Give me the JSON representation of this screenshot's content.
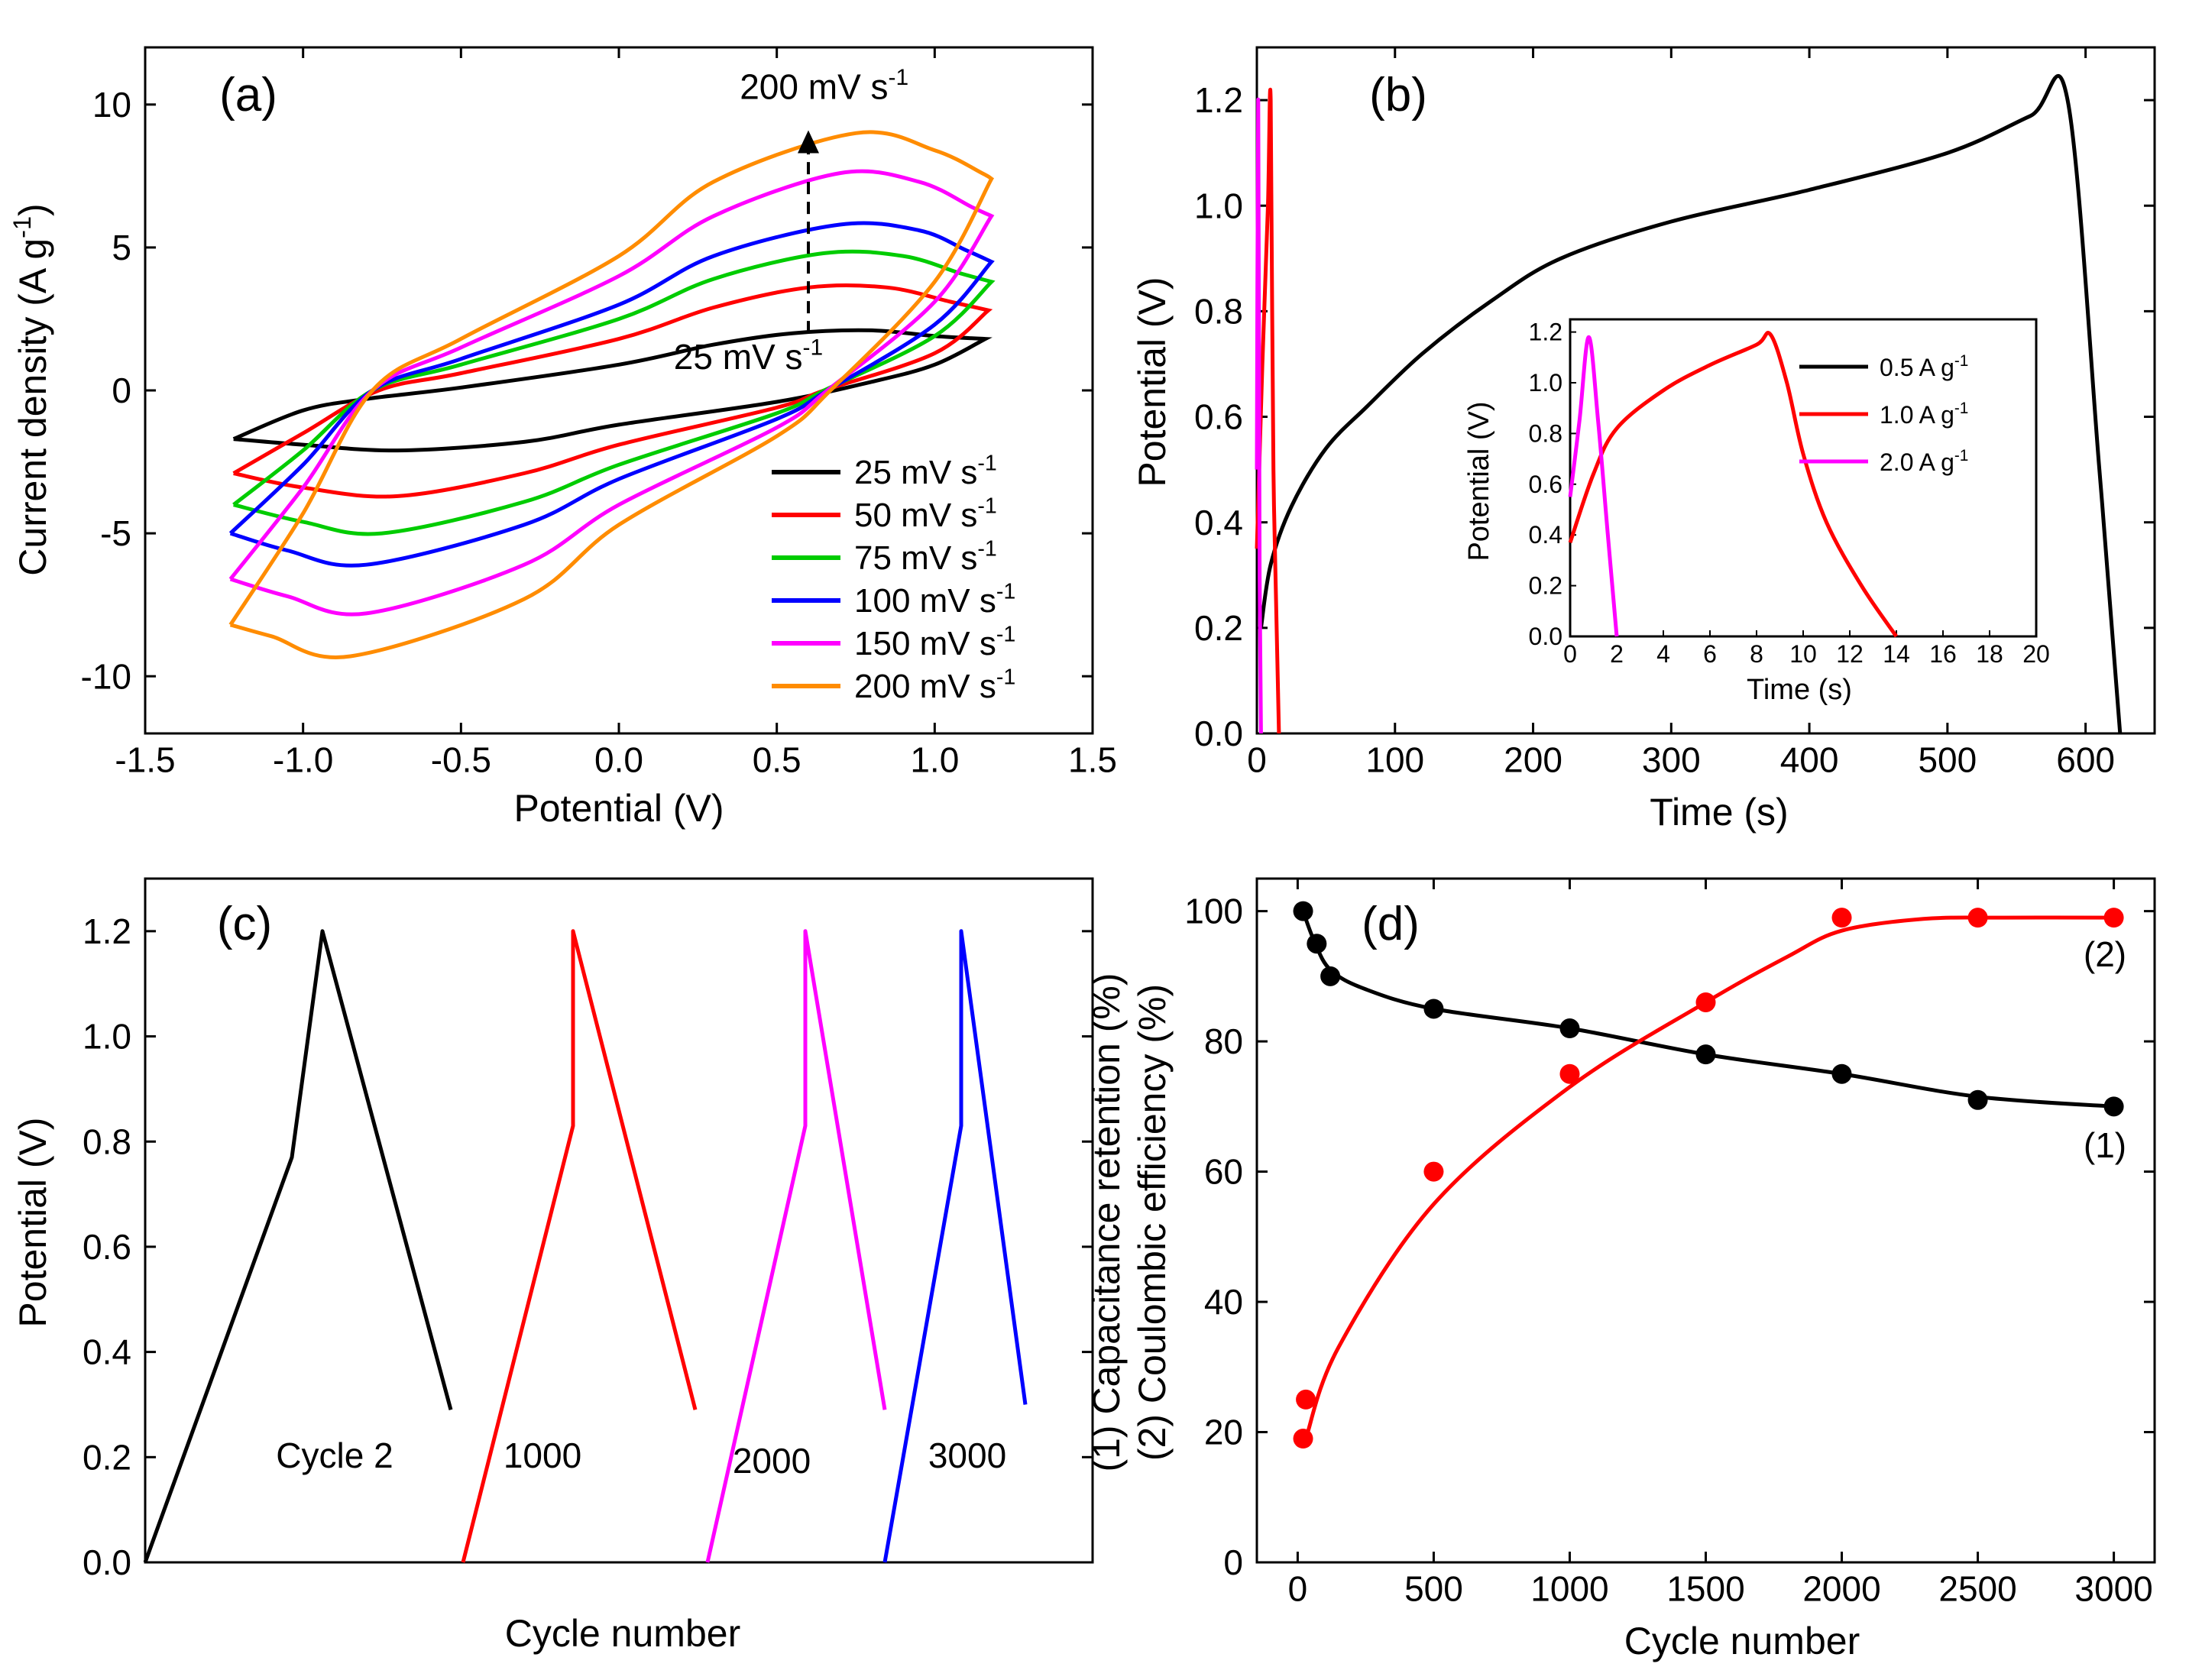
{
  "chart_data": [
    {
      "panel": "(a)",
      "type": "line",
      "xlabel": "Potential (V)",
      "ylabel": "Current density (A g⁻¹)",
      "xlim": [
        -1.5,
        1.5
      ],
      "ylim": [
        -12,
        12
      ],
      "xticks": [
        -1.5,
        -1.0,
        -0.5,
        0.0,
        0.5,
        1.0,
        1.5
      ],
      "xtick_labels": [
        "-1.5",
        "-1.0",
        "-0.5",
        "0.0",
        "0.5",
        "1.0",
        "1.5"
      ],
      "yticks": [
        -10,
        -5,
        0,
        5,
        10
      ],
      "ytick_labels": [
        "-10",
        "-5",
        "0",
        "5",
        "10"
      ],
      "legend_position": "bottom-right",
      "annotations": [
        {
          "text": "200 mV s⁻¹",
          "x": 0.65,
          "y": 10.2
        },
        {
          "text": "25 mV s⁻¹",
          "x": 0.41,
          "y": 0.75
        }
      ],
      "series": [
        {
          "name": "25 mV s⁻¹",
          "color": "#000000",
          "upper": [
            [
              -1.22,
              -1.7
            ],
            [
              -1.0,
              -0.7
            ],
            [
              -0.8,
              -0.3
            ],
            [
              -0.5,
              0.1
            ],
            [
              0,
              0.9
            ],
            [
              0.3,
              1.6
            ],
            [
              0.55,
              2.0
            ],
            [
              0.8,
              2.1
            ],
            [
              1.0,
              1.9
            ],
            [
              1.16,
              1.8
            ]
          ],
          "lower": [
            [
              1.16,
              1.8
            ],
            [
              1.0,
              0.9
            ],
            [
              0.8,
              0.3
            ],
            [
              0.5,
              -0.4
            ],
            [
              0,
              -1.2
            ],
            [
              -0.3,
              -1.8
            ],
            [
              -0.7,
              -2.1
            ],
            [
              -1.0,
              -1.9
            ],
            [
              -1.22,
              -1.7
            ]
          ]
        },
        {
          "name": "50 mV s⁻¹",
          "color": "#ff0000",
          "upper": [
            [
              -1.22,
              -2.9
            ],
            [
              -1.0,
              -1.5
            ],
            [
              -0.76,
              0.0
            ],
            [
              -0.5,
              0.6
            ],
            [
              0,
              1.8
            ],
            [
              0.3,
              2.9
            ],
            [
              0.6,
              3.6
            ],
            [
              0.85,
              3.6
            ],
            [
              1.05,
              3.1
            ],
            [
              1.17,
              2.8
            ]
          ],
          "lower": [
            [
              1.17,
              2.8
            ],
            [
              1.0,
              1.3
            ],
            [
              0.65,
              0.0
            ],
            [
              0.5,
              -0.6
            ],
            [
              0,
              -1.9
            ],
            [
              -0.3,
              -2.9
            ],
            [
              -0.7,
              -3.7
            ],
            [
              -1.0,
              -3.4
            ],
            [
              -1.22,
              -2.9
            ]
          ]
        },
        {
          "name": "75 mV s⁻¹",
          "color": "#00cc00",
          "upper": [
            [
              -1.22,
              -4.0
            ],
            [
              -1.0,
              -2.1
            ],
            [
              -0.78,
              0.0
            ],
            [
              -0.5,
              0.9
            ],
            [
              0,
              2.5
            ],
            [
              0.3,
              3.9
            ],
            [
              0.65,
              4.8
            ],
            [
              0.9,
              4.7
            ],
            [
              1.08,
              4.1
            ],
            [
              1.18,
              3.8
            ]
          ],
          "lower": [
            [
              1.18,
              3.8
            ],
            [
              1.0,
              1.9
            ],
            [
              0.65,
              0.0
            ],
            [
              0.5,
              -0.8
            ],
            [
              0,
              -2.6
            ],
            [
              -0.3,
              -3.9
            ],
            [
              -0.75,
              -5.0
            ],
            [
              -1.0,
              -4.6
            ],
            [
              -1.22,
              -4.0
            ]
          ]
        },
        {
          "name": "100 mV s⁻¹",
          "color": "#0000ff",
          "upper": [
            [
              -1.23,
              -5.0
            ],
            [
              -1.0,
              -2.6
            ],
            [
              -0.78,
              0.0
            ],
            [
              -0.5,
              1.1
            ],
            [
              0,
              3.0
            ],
            [
              0.3,
              4.7
            ],
            [
              0.7,
              5.8
            ],
            [
              0.95,
              5.6
            ],
            [
              1.1,
              4.9
            ],
            [
              1.18,
              4.5
            ]
          ],
          "lower": [
            [
              1.18,
              4.5
            ],
            [
              1.0,
              2.3
            ],
            [
              0.66,
              0.0
            ],
            [
              0.5,
              -1.0
            ],
            [
              0,
              -3.1
            ],
            [
              -0.3,
              -4.7
            ],
            [
              -0.8,
              -6.1
            ],
            [
              -1.05,
              -5.6
            ],
            [
              -1.23,
              -5.0
            ]
          ]
        },
        {
          "name": "150 mV s⁻¹",
          "color": "#ff00ff",
          "upper": [
            [
              -1.23,
              -6.6
            ],
            [
              -1.0,
              -3.4
            ],
            [
              -0.78,
              0.0
            ],
            [
              -0.5,
              1.5
            ],
            [
              0,
              4.0
            ],
            [
              0.3,
              6.1
            ],
            [
              0.7,
              7.6
            ],
            [
              0.95,
              7.3
            ],
            [
              1.12,
              6.4
            ],
            [
              1.18,
              6.1
            ]
          ],
          "lower": [
            [
              1.18,
              6.1
            ],
            [
              1.0,
              3.1
            ],
            [
              0.66,
              0.0
            ],
            [
              0.5,
              -1.3
            ],
            [
              0,
              -4.0
            ],
            [
              -0.3,
              -6.1
            ],
            [
              -0.8,
              -7.8
            ],
            [
              -1.05,
              -7.2
            ],
            [
              -1.23,
              -6.6
            ]
          ]
        },
        {
          "name": "200 mV s⁻¹",
          "color": "#ff8c00",
          "upper": [
            [
              -1.23,
              -8.2
            ],
            [
              -1.0,
              -4.3
            ],
            [
              -0.78,
              0.0
            ],
            [
              -0.5,
              1.8
            ],
            [
              0,
              4.7
            ],
            [
              0.3,
              7.3
            ],
            [
              0.75,
              9.0
            ],
            [
              1.0,
              8.4
            ],
            [
              1.15,
              7.6
            ],
            [
              1.18,
              7.4
            ]
          ],
          "lower": [
            [
              1.18,
              7.4
            ],
            [
              1.0,
              3.8
            ],
            [
              0.67,
              0.0
            ],
            [
              0.5,
              -1.6
            ],
            [
              0,
              -4.7
            ],
            [
              -0.3,
              -7.3
            ],
            [
              -0.85,
              -9.3
            ],
            [
              -1.1,
              -8.6
            ],
            [
              -1.23,
              -8.2
            ]
          ]
        }
      ]
    },
    {
      "panel": "(b)",
      "type": "line",
      "xlabel": "Time (s)",
      "ylabel": "Potential (V)",
      "xlim": [
        0,
        650
      ],
      "ylim": [
        0,
        1.3
      ],
      "xticks": [
        0,
        100,
        200,
        300,
        400,
        500,
        600
      ],
      "xtick_labels": [
        "0",
        "100",
        "200",
        "300",
        "400",
        "500",
        "600"
      ],
      "yticks": [
        0,
        0.2,
        0.4,
        0.6,
        0.8,
        1.0,
        1.2
      ],
      "ytick_labels": [
        "0.0",
        "0.2",
        "0.4",
        "0.6",
        "0.8",
        "1.0",
        "1.2"
      ],
      "series": [
        {
          "name": "0.5 A g⁻¹",
          "color": "#000000",
          "points": [
            [
              3,
              0.2
            ],
            [
              10,
              0.32
            ],
            [
              25,
              0.43
            ],
            [
              50,
              0.54
            ],
            [
              80,
              0.62
            ],
            [
              120,
              0.72
            ],
            [
              170,
              0.82
            ],
            [
              220,
              0.9
            ],
            [
              300,
              0.97
            ],
            [
              400,
              1.03
            ],
            [
              500,
              1.1
            ],
            [
              560,
              1.17
            ],
            [
              587,
              1.2
            ],
            [
              610,
              0.5
            ],
            [
              625,
              0.0
            ]
          ]
        },
        {
          "name": "1.0 A g⁻¹",
          "color": "#ff0000",
          "points": [
            [
              0,
              0.35
            ],
            [
              4,
              0.7
            ],
            [
              8,
              1.0
            ],
            [
              10,
              1.2
            ],
            [
              12,
              0.5
            ],
            [
              16,
              0.0
            ]
          ]
        },
        {
          "name": "2.0 A g⁻¹",
          "color": "#ff00ff",
          "points": [
            [
              0,
              0.5
            ],
            [
              1,
              1.2
            ],
            [
              2,
              0.3
            ],
            [
              3,
              0.0
            ]
          ]
        }
      ],
      "inset": {
        "xlabel": "Time (s)",
        "ylabel": "Potential (V)",
        "xlim": [
          0,
          20
        ],
        "ylim": [
          0,
          1.25
        ],
        "xticks": [
          0,
          2,
          4,
          6,
          8,
          10,
          12,
          14,
          16,
          18,
          20
        ],
        "xtick_labels": [
          "0",
          "2",
          "4",
          "6",
          "8",
          "10",
          "12",
          "14",
          "16",
          "18",
          "20"
        ],
        "yticks": [
          0,
          0.2,
          0.4,
          0.6,
          0.8,
          1.0,
          1.2
        ],
        "ytick_labels": [
          "0.0",
          "0.2",
          "0.4",
          "0.6",
          "0.8",
          "1.0",
          "1.2"
        ],
        "legend_position": "top-right",
        "series": [
          {
            "name": "0.5 A g⁻¹",
            "color": "#000000",
            "points": []
          },
          {
            "name": "1.0 A g⁻¹",
            "color": "#ff0000",
            "points": [
              [
                0,
                0.37
              ],
              [
                1,
                0.64
              ],
              [
                2,
                0.82
              ],
              [
                4,
                0.97
              ],
              [
                6,
                1.07
              ],
              [
                8,
                1.15
              ],
              [
                8.6,
                1.19
              ],
              [
                9.3,
                1.0
              ],
              [
                10,
                0.72
              ],
              [
                11,
                0.45
              ],
              [
                12.5,
                0.2
              ],
              [
                14,
                0.0
              ]
            ]
          },
          {
            "name": "2.0 A g⁻¹",
            "color": "#ff00ff",
            "points": [
              [
                0,
                0.55
              ],
              [
                0.4,
                0.85
              ],
              [
                0.8,
                1.18
              ],
              [
                1.2,
                0.85
              ],
              [
                1.6,
                0.42
              ],
              [
                2.0,
                0.0
              ]
            ]
          }
        ]
      }
    },
    {
      "panel": "(c)",
      "type": "line",
      "xlabel": "Cycle number",
      "ylabel": "Potential (V)",
      "ylim": [
        0,
        1.3
      ],
      "yticks": [
        0,
        0.2,
        0.4,
        0.6,
        0.8,
        1.0,
        1.2
      ],
      "ytick_labels": [
        "0.0",
        "0.2",
        "0.4",
        "0.6",
        "0.8",
        "1.0",
        "1.2"
      ],
      "series": [
        {
          "name": "Cycle 2",
          "color": "#000000",
          "label": "Cycle 2",
          "points": [
            [
              0,
              0
            ],
            [
              0.48,
              0.77
            ],
            [
              0.58,
              1.2
            ],
            [
              1.0,
              0.29
            ]
          ]
        },
        {
          "name": "1000",
          "color": "#ff0000",
          "label": "1000",
          "points": [
            [
              1.04,
              0
            ],
            [
              1.4,
              0.83
            ],
            [
              1.4,
              1.2
            ],
            [
              1.8,
              0.29
            ]
          ]
        },
        {
          "name": "2000",
          "color": "#ff00ff",
          "label": "2000",
          "points": [
            [
              1.84,
              0
            ],
            [
              2.16,
              0.83
            ],
            [
              2.16,
              1.2
            ],
            [
              2.42,
              0.29
            ]
          ]
        },
        {
          "name": "3000",
          "color": "#0000ff",
          "label": "3000",
          "points": [
            [
              2.42,
              0
            ],
            [
              2.67,
              0.83
            ],
            [
              2.67,
              1.2
            ],
            [
              2.88,
              0.3
            ]
          ]
        }
      ]
    },
    {
      "panel": "(d)",
      "type": "scatter",
      "xlabel": "Cycle number",
      "ylabel_1": "(1) Capacitance retention (%)",
      "ylabel_2": "(2) Coulombic efficiency (%)",
      "xlim": [
        -150,
        3150
      ],
      "ylim": [
        0,
        105
      ],
      "xticks": [
        0,
        500,
        1000,
        1500,
        2000,
        2500,
        3000
      ],
      "xtick_labels": [
        "0",
        "500",
        "1000",
        "1500",
        "2000",
        "2500",
        "3000"
      ],
      "yticks": [
        0,
        20,
        40,
        60,
        80,
        100
      ],
      "ytick_labels": [
        "0",
        "20",
        "40",
        "60",
        "80",
        "100"
      ],
      "series": [
        {
          "name": "(1)",
          "color": "#000000",
          "x": [
            20,
            70,
            120,
            500,
            1000,
            1500,
            2000,
            2500,
            3000
          ],
          "y": [
            100,
            95,
            90,
            85,
            82,
            78,
            75,
            71,
            70
          ]
        },
        {
          "name": "(2)",
          "color": "#ff0000",
          "x": [
            20,
            30,
            500,
            1000,
            1500,
            2000,
            2500,
            3000
          ],
          "y": [
            19,
            25,
            60,
            75,
            86,
            99,
            99,
            99
          ]
        }
      ]
    }
  ],
  "panel_labels": {
    "a": "(a)",
    "b": "(b)",
    "c": "(c)",
    "d": "(d)"
  }
}
